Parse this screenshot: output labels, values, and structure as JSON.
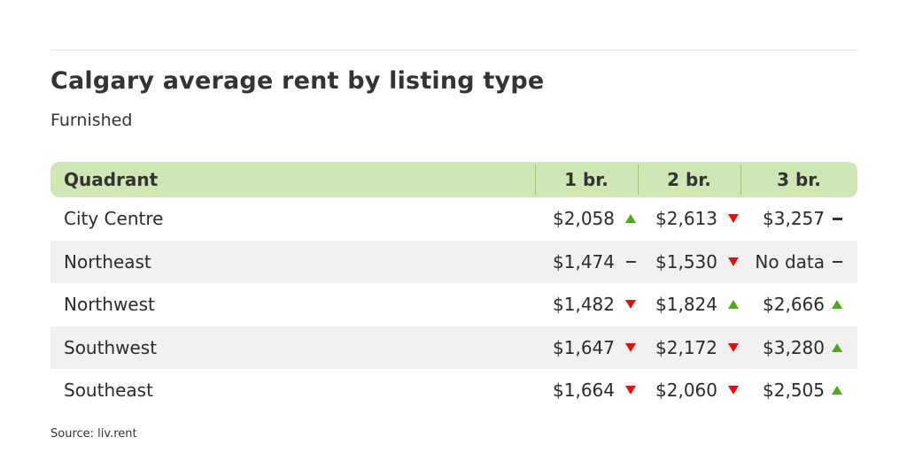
{
  "title": "Calgary average rent by listing type",
  "subtitle": "Furnished",
  "source": "Source: liv.rent",
  "colors": {
    "header_bg": "#cfe6b5",
    "up": "#4caa14",
    "down": "#e01010",
    "flat": "#333333",
    "alt_row": "#f1f1f1"
  },
  "chart_data": {
    "type": "table",
    "title": "Calgary average rent by listing type",
    "subtitle": "Furnished",
    "columns": [
      "Quadrant",
      "1 br.",
      "2 br.",
      "3 br."
    ],
    "rows": [
      {
        "quadrant": "City Centre",
        "cells": [
          {
            "value": "$2,058",
            "trend": "up"
          },
          {
            "value": "$2,613",
            "trend": "down"
          },
          {
            "value": "$3,257",
            "trend": "flat"
          }
        ]
      },
      {
        "quadrant": "Northeast",
        "cells": [
          {
            "value": "$1,474",
            "trend": "flat"
          },
          {
            "value": "$1,530",
            "trend": "down"
          },
          {
            "value": "No data",
            "trend": "flat"
          }
        ]
      },
      {
        "quadrant": "Northwest",
        "cells": [
          {
            "value": "$1,482",
            "trend": "down"
          },
          {
            "value": "$1,824",
            "trend": "up"
          },
          {
            "value": "$2,666",
            "trend": "up"
          }
        ]
      },
      {
        "quadrant": "Southwest",
        "cells": [
          {
            "value": "$1,647",
            "trend": "down"
          },
          {
            "value": "$2,172",
            "trend": "down"
          },
          {
            "value": "$3,280",
            "trend": "up"
          }
        ]
      },
      {
        "quadrant": "Southeast",
        "cells": [
          {
            "value": "$1,664",
            "trend": "down"
          },
          {
            "value": "$2,060",
            "trend": "down"
          },
          {
            "value": "$2,505",
            "trend": "up"
          }
        ]
      }
    ]
  }
}
